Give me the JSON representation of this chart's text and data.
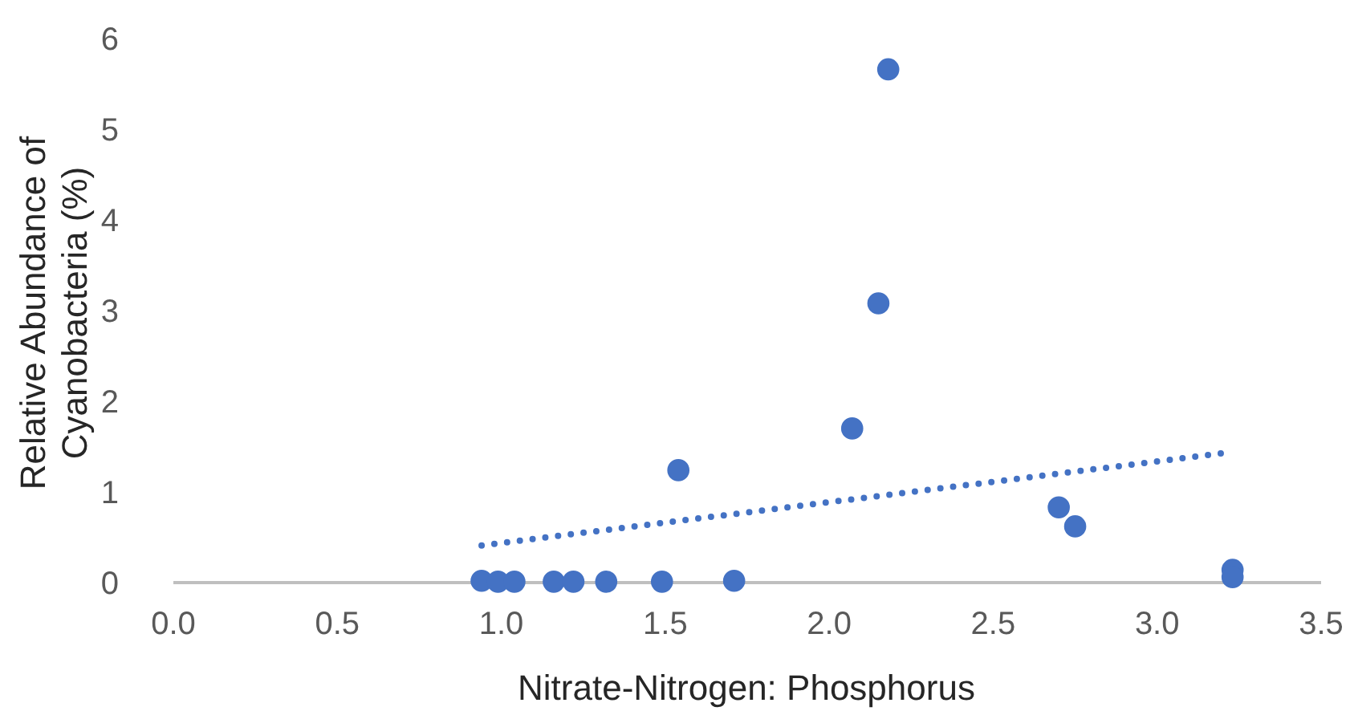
{
  "chart_data": {
    "type": "scatter",
    "xlabel": "Nitrate-Nitrogen: Phosphorus",
    "ylabel": "Relative Abundance of Cyanobacteria (%)",
    "xlim": [
      0,
      3.5
    ],
    "ylim": [
      0,
      6
    ],
    "xticks": [
      {
        "value": 0,
        "label": "0.0"
      },
      0.5,
      {
        "value": 1,
        "label": "1.0"
      },
      1.5,
      {
        "value": 2,
        "label": "2.0"
      },
      2.5,
      {
        "value": 3,
        "label": "3.0"
      },
      3.5
    ],
    "yticks": [
      0,
      1,
      2,
      3,
      4,
      5,
      6
    ],
    "grid": false,
    "marker": "circle",
    "series": [
      {
        "color": "#4472c4",
        "x": [
          0.94,
          0.99,
          1.04,
          1.16,
          1.22,
          1.32,
          1.49,
          1.71,
          1.54,
          2.18,
          2.15,
          2.07,
          2.7,
          2.75,
          3.23,
          3.23
        ],
        "values": [
          0.02,
          0.01,
          0.01,
          0.01,
          0.01,
          0.01,
          0.01,
          0.02,
          1.24,
          5.66,
          3.08,
          1.7,
          0.83,
          0.62,
          0.14,
          0.06
        ]
      },
      {
        "type": "line",
        "color": "#4472c4",
        "line_style": "dotted",
        "marker": "none",
        "x": [
          0.94,
          3.23
        ],
        "values": [
          0.41,
          1.44
        ]
      }
    ]
  }
}
